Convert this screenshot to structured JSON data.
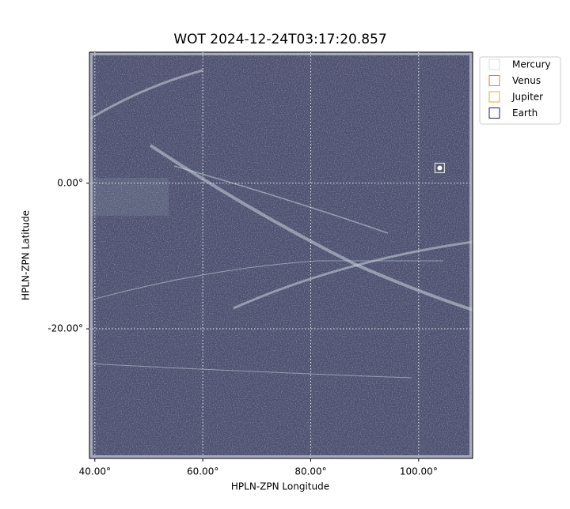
{
  "chart_data": {
    "type": "scatter",
    "title": "WOT 2024-12-24T03:17:20.857",
    "xlabel": "HPLN-ZPN Longitude",
    "ylabel": "HPLN-ZPN Latitude",
    "xlim": [
      39,
      110
    ],
    "ylim": [
      -37.8,
      18
    ],
    "xticks": [
      {
        "value": 40,
        "label": "40.00°"
      },
      {
        "value": 60,
        "label": "60.00°"
      },
      {
        "value": 80,
        "label": "80.00°"
      },
      {
        "value": 100,
        "label": "100.00°"
      }
    ],
    "yticks": [
      {
        "value": 0,
        "label": "0.00°"
      },
      {
        "value": -20,
        "label": "-20.00°"
      }
    ],
    "grid": true,
    "legend": "outside upper right",
    "series": [
      {
        "name": "Mercury",
        "color": "#dddddd",
        "x": [
          103.9
        ],
        "y": [
          2.1
        ]
      },
      {
        "name": "Venus",
        "color": "#e07b39",
        "x": [],
        "y": []
      },
      {
        "name": "Jupiter",
        "color": "#e0b020",
        "x": [],
        "y": []
      },
      {
        "name": "Earth",
        "color": "#1a1a80",
        "x": [],
        "y": []
      }
    ]
  }
}
